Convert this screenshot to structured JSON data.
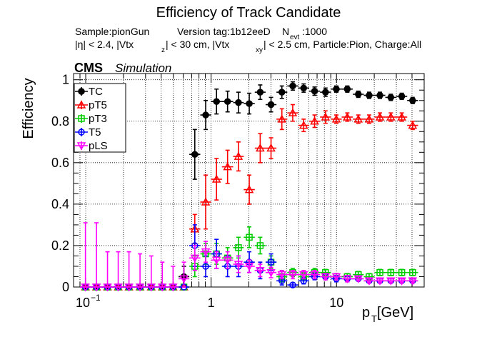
{
  "title": "Efficiency of Track Candidate",
  "info": {
    "sample": "Sample:pionGun",
    "version": "Version tag:1b12eeD",
    "nevt_label": "N",
    "nevt_sub": "evt",
    "nevt_value": ":1000",
    "cuts": "|η| < 2.4, |Vtx_z| < 30 cm, |Vtx_xy| < 2.5 cm, Particle:Pion, Charge:All",
    "cuts_parts": [
      "|η| < 2.4, |Vtx",
      "z",
      "| < 30 cm, |Vtx",
      "xy",
      "| < 2.5 cm, Particle:Pion, Charge:All"
    ]
  },
  "cms": {
    "label": "CMS",
    "sublabel": "Simulation"
  },
  "chart_data": {
    "type": "scatter",
    "title": "Efficiency of Track Candidate",
    "xlabel": "p_T [GeV]",
    "xlabel_main": "p",
    "xlabel_sub": "T",
    "xlabel_unit": " [GeV]",
    "ylabel": "Efficiency",
    "xscale": "log",
    "xlim": [
      0.08,
      50
    ],
    "ylim": [
      0,
      1.03
    ],
    "grid": true,
    "legend_position": "top-left",
    "x_ticks": [
      {
        "value": 0.1,
        "base": "10",
        "exp": "−1"
      },
      {
        "value": 1,
        "base": "1",
        "exp": ""
      },
      {
        "value": 10,
        "base": "10",
        "exp": ""
      }
    ],
    "y_ticks": [
      "0",
      "0.2",
      "0.4",
      "0.6",
      "0.8",
      "1"
    ],
    "y_tick_values": [
      0,
      0.2,
      0.4,
      0.6,
      0.8,
      1.0
    ],
    "bin_edges": [
      0.09,
      0.11,
      0.135,
      0.165,
      0.2,
      0.245,
      0.3,
      0.37,
      0.45,
      0.55,
      0.67,
      0.82,
      1.0,
      1.22,
      1.5,
      1.82,
      2.23,
      2.72,
      3.32,
      4.05,
      4.95,
      6.05,
      7.39,
      9.03,
      11.0,
      13.5,
      16.5,
      20.1,
      24.5,
      30.0,
      36.6,
      44.7
    ],
    "series": [
      {
        "name": "TC",
        "color": "#000000",
        "marker": "filled-circle",
        "values": [
          0,
          0,
          0,
          0,
          0,
          0,
          0,
          0,
          0,
          0.05,
          0.64,
          0.83,
          0.895,
          0.895,
          0.89,
          0.885,
          0.94,
          0.88,
          0.94,
          0.97,
          0.96,
          0.945,
          0.94,
          0.955,
          0.955,
          0.93,
          0.925,
          0.925,
          0.915,
          0.92,
          0.9
        ],
        "errors": [
          0,
          0,
          0,
          0,
          0,
          0,
          0,
          0,
          0,
          0.05,
          0.12,
          0.07,
          0.06,
          0.05,
          0.05,
          0.05,
          0.035,
          0.035,
          0.03,
          0.02,
          0.02,
          0.02,
          0.02,
          0.015,
          0.015,
          0.015,
          0.015,
          0.015,
          0.015,
          0.015,
          0.015
        ]
      },
      {
        "name": "pT5",
        "color": "#ff0000",
        "marker": "open-triangle",
        "values": [
          0,
          0,
          0,
          0,
          0,
          0,
          0,
          0,
          0,
          0,
          0.28,
          0.41,
          0.52,
          0.58,
          0.63,
          0.47,
          0.67,
          0.67,
          0.81,
          0.84,
          0.78,
          0.8,
          0.82,
          0.81,
          0.82,
          0.81,
          0.81,
          0.82,
          0.82,
          0.82,
          0.78
        ],
        "errors": [
          0,
          0,
          0,
          0,
          0,
          0,
          0,
          0,
          0,
          0,
          0.07,
          0.13,
          0.1,
          0.08,
          0.07,
          0.07,
          0.07,
          0.05,
          0.05,
          0.04,
          0.03,
          0.03,
          0.03,
          0.02,
          0.02,
          0.02,
          0.02,
          0.02,
          0.02,
          0.02,
          0.02
        ]
      },
      {
        "name": "pT3",
        "color": "#00cc00",
        "marker": "open-square",
        "values": [
          0,
          0,
          0,
          0,
          0,
          0,
          0,
          0,
          0,
          0,
          0.1,
          0.16,
          0.16,
          0.14,
          0.19,
          0.24,
          0.2,
          0.12,
          0.05,
          0.07,
          0.05,
          0.07,
          0.07,
          0.05,
          0.05,
          0.06,
          0.05,
          0.07,
          0.07,
          0.07,
          0.07
        ],
        "errors": [
          0,
          0,
          0,
          0,
          0,
          0,
          0,
          0,
          0,
          0,
          0.05,
          0.05,
          0.05,
          0.05,
          0.05,
          0.05,
          0.04,
          0.03,
          0.025,
          0.02,
          0.02,
          0.02,
          0.015,
          0.015,
          0.015,
          0.015,
          0.015,
          0.015,
          0.015,
          0.015,
          0.015
        ]
      },
      {
        "name": "T5",
        "color": "#0000ff",
        "marker": "open-circle",
        "values": [
          0,
          0,
          0,
          0,
          0,
          0,
          0,
          0,
          0,
          0,
          0.2,
          0.1,
          0.16,
          0.1,
          0.1,
          0.12,
          0.08,
          0.12,
          0.03,
          0.01,
          0.03,
          0.05,
          0.05,
          0.04,
          0.04,
          0.04,
          0.03,
          0.03,
          0.03,
          0.03,
          0.03
        ],
        "errors": [
          0,
          0,
          0,
          0,
          0,
          0,
          0,
          0,
          0,
          0,
          0.1,
          0.05,
          0.07,
          0.05,
          0.05,
          0.05,
          0.04,
          0.04,
          0.02,
          0.01,
          0.015,
          0.015,
          0.015,
          0.015,
          0.015,
          0.01,
          0.01,
          0.01,
          0.01,
          0.01,
          0.01
        ]
      },
      {
        "name": "pLS",
        "color": "#ff00ff",
        "marker": "open-triangle-down",
        "values": [
          0,
          0,
          0,
          0,
          0,
          0,
          0,
          0,
          0,
          0.04,
          0.14,
          0.17,
          0.13,
          0.13,
          0.11,
          0.1,
          0.08,
          0.07,
          0.06,
          0.06,
          0.06,
          0.06,
          0.05,
          0.05,
          0.04,
          0.04,
          0.03,
          0.03,
          0.03,
          0.03,
          0.03
        ],
        "errors": [
          0.31,
          0.31,
          0.17,
          0.17,
          0.17,
          0.16,
          0.15,
          0.12,
          0.1,
          0.08,
          0.06,
          0.05,
          0.04,
          0.04,
          0.04,
          0.03,
          0.03,
          0.025,
          0.02,
          0.02,
          0.02,
          0.02,
          0.015,
          0.015,
          0.015,
          0.01,
          0.01,
          0.01,
          0.01,
          0.01,
          0.01
        ]
      }
    ]
  }
}
